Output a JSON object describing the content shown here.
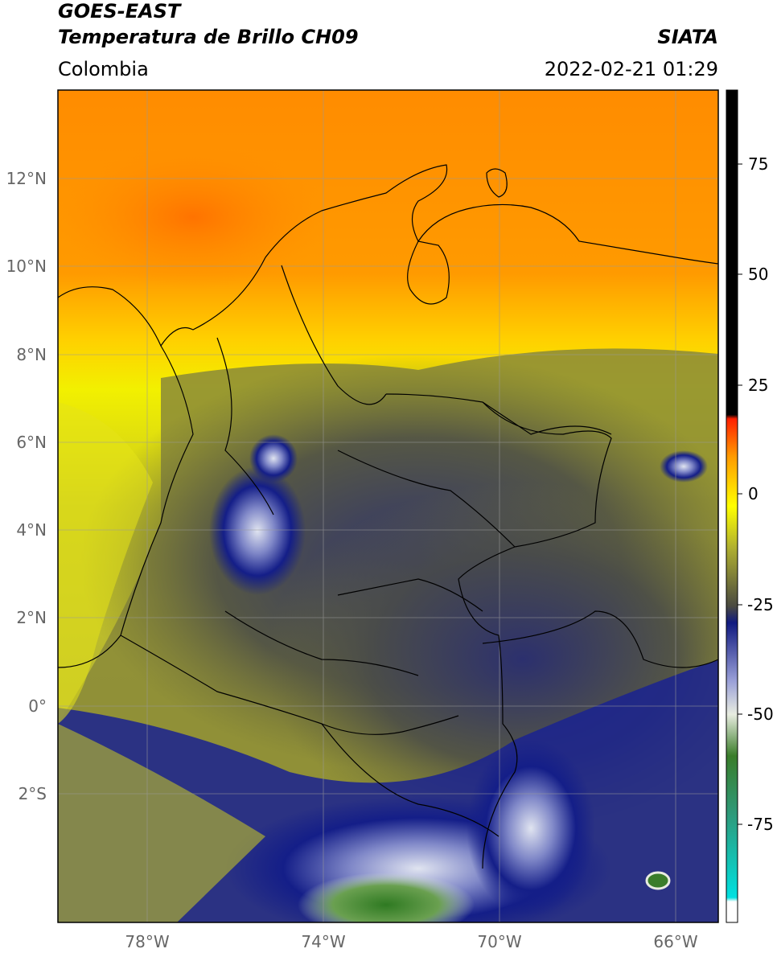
{
  "header": {
    "satellite": "GOES-EAST",
    "product": "Temperatura de Brillo CH09",
    "region": "Colombia",
    "agency": "SIATA",
    "timestamp": "2022-02-21 01:29"
  },
  "map": {
    "lat_labels": [
      "12°N",
      "10°N",
      "8°N",
      "6°N",
      "4°N",
      "2°N",
      "0°",
      "2°S"
    ],
    "lon_labels": [
      "78°W",
      "74°W",
      "70°W",
      "66°W"
    ],
    "lat_range": [
      -5,
      14
    ],
    "lon_range": [
      -80,
      -65
    ]
  },
  "colorbar": {
    "ticks": [
      "75",
      "50",
      "25",
      "0",
      "-25",
      "-50",
      "-75"
    ],
    "range": [
      -95,
      90
    ],
    "colors": [
      "#ffffff",
      "#00e0e0",
      "#2e8b57",
      "#3a7d2a",
      "#e8ece0",
      "#6a6fc0",
      "#101a80",
      "#4a4a40",
      "#b0b030",
      "#ffff00",
      "#ff8c00",
      "#ff2000",
      "#000000"
    ]
  }
}
